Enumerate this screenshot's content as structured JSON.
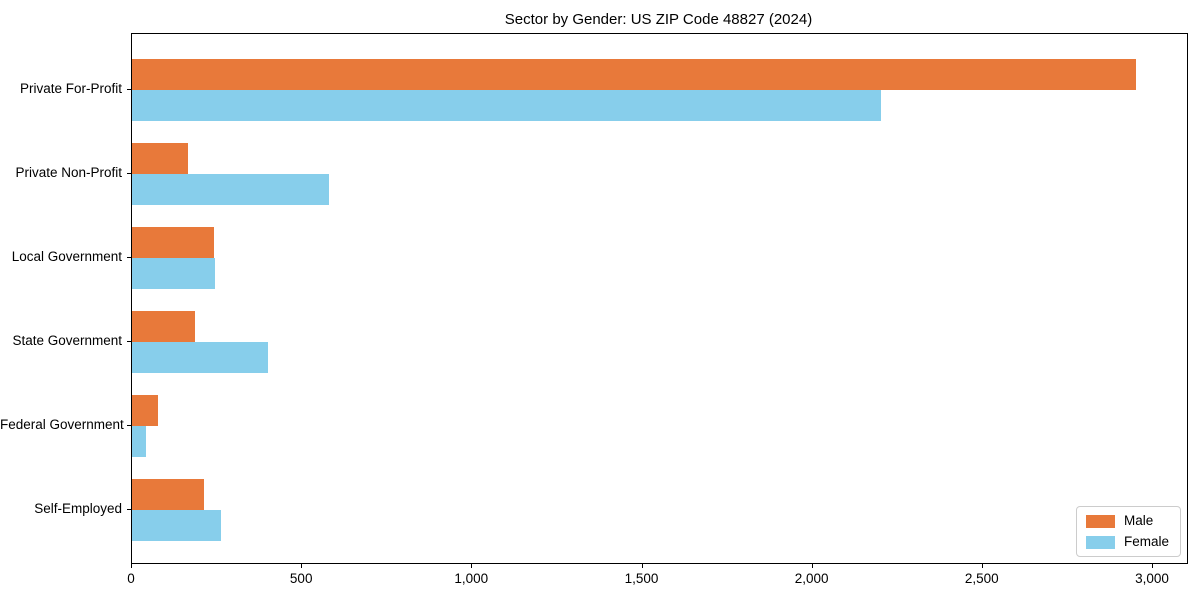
{
  "chart_data": {
    "type": "bar",
    "orientation": "horizontal",
    "title": "Sector by Gender: US ZIP Code 48827 (2024)",
    "categories": [
      "Private For-Profit",
      "Private Non-Profit",
      "Local Government",
      "State Government",
      "Federal Government",
      "Self-Employed"
    ],
    "series": [
      {
        "name": "Male",
        "color": "#e8793a",
        "values": [
          2950,
          165,
          240,
          185,
          75,
          210
        ]
      },
      {
        "name": "Female",
        "color": "#87ceeb",
        "values": [
          2200,
          580,
          245,
          400,
          40,
          260
        ]
      }
    ],
    "x_ticks": [
      0,
      500,
      1000,
      1500,
      2000,
      2500,
      3000
    ],
    "x_tick_labels": [
      "0",
      "500",
      "1,000",
      "1,500",
      "2,000",
      "2,500",
      "3,000"
    ],
    "xlim": [
      0,
      3100
    ],
    "xlabel": "",
    "ylabel": "",
    "grid": false,
    "legend_position": "lower right",
    "background_color": "#ffffff",
    "axis_color": "#000000"
  }
}
